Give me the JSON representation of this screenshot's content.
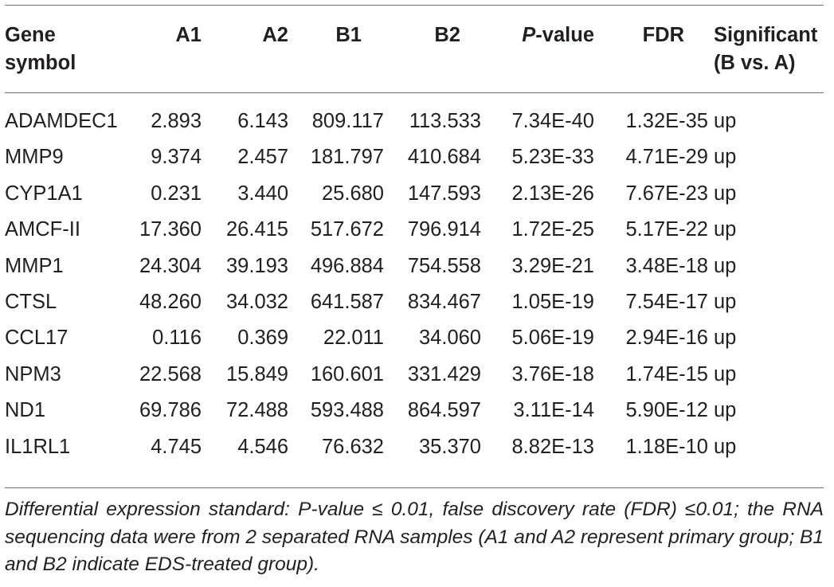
{
  "table": {
    "headers": {
      "gene_line1": "Gene",
      "gene_line2": "symbol",
      "a1": "A1",
      "a2": "A2",
      "b1": "B1",
      "b2": "B2",
      "pvalue_p": "P",
      "pvalue_rest": "-value",
      "fdr": "FDR",
      "sig_line1": "Significant",
      "sig_line2": "(B vs. A)"
    },
    "rows": [
      {
        "gene": "ADAMDEC1",
        "a1": "2.893",
        "a2": "6.143",
        "b1": "809.117",
        "b2": "113.533",
        "pvalue": "7.34E-40",
        "fdr": "1.32E-35",
        "sig": "up"
      },
      {
        "gene": "MMP9",
        "a1": "9.374",
        "a2": "2.457",
        "b1": "181.797",
        "b2": "410.684",
        "pvalue": "5.23E-33",
        "fdr": "4.71E-29",
        "sig": "up"
      },
      {
        "gene": "CYP1A1",
        "a1": "0.231",
        "a2": "3.440",
        "b1": "25.680",
        "b2": "147.593",
        "pvalue": "2.13E-26",
        "fdr": "7.67E-23",
        "sig": "up"
      },
      {
        "gene": "AMCF-II",
        "a1": "17.360",
        "a2": "26.415",
        "b1": "517.672",
        "b2": "796.914",
        "pvalue": "1.72E-25",
        "fdr": "5.17E-22",
        "sig": "up"
      },
      {
        "gene": "MMP1",
        "a1": "24.304",
        "a2": "39.193",
        "b1": "496.884",
        "b2": "754.558",
        "pvalue": "3.29E-21",
        "fdr": "3.48E-18",
        "sig": "up"
      },
      {
        "gene": "CTSL",
        "a1": "48.260",
        "a2": "34.032",
        "b1": "641.587",
        "b2": "834.467",
        "pvalue": "1.05E-19",
        "fdr": "7.54E-17",
        "sig": "up"
      },
      {
        "gene": "CCL17",
        "a1": "0.116",
        "a2": "0.369",
        "b1": "22.011",
        "b2": "34.060",
        "pvalue": "5.06E-19",
        "fdr": "2.94E-16",
        "sig": "up"
      },
      {
        "gene": "NPM3",
        "a1": "22.568",
        "a2": "15.849",
        "b1": "160.601",
        "b2": "331.429",
        "pvalue": "3.76E-18",
        "fdr": "1.74E-15",
        "sig": "up"
      },
      {
        "gene": "ND1",
        "a1": "69.786",
        "a2": "72.488",
        "b1": "593.488",
        "b2": "864.597",
        "pvalue": "3.11E-14",
        "fdr": "5.90E-12",
        "sig": "up"
      },
      {
        "gene": "IL1RL1",
        "a1": "4.745",
        "a2": "4.546",
        "b1": "76.632",
        "b2": "35.370",
        "pvalue": "8.82E-13",
        "fdr": "1.18E-10",
        "sig": "up"
      }
    ]
  },
  "footnote": "Differential expression standard: P-value ≤ 0.01, false discovery rate (FDR) ≤0.01; the RNA sequencing data were from 2 separated RNA samples (A1 and A2 represent primary group; B1 and B2 indicate EDS-treated group)."
}
